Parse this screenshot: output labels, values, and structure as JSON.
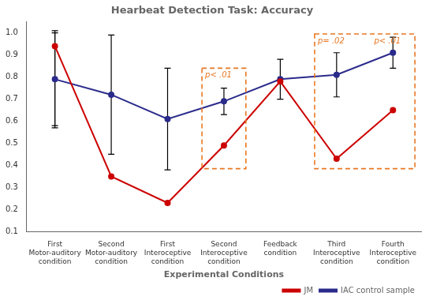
{
  "chart_data": {
    "type": "line",
    "title": "Hearbeat Detection Task: Accuracy",
    "xlabel": "Experimental Conditions",
    "categories": [
      "First\nMotor-auditory\ncondition",
      "Second\nMotor-auditory\ncondition",
      "First\nInteroceptive\ncondition",
      "Second\nInteroceptive\ncondition",
      "Feedback\ncondition",
      "Third\nInteroceptive\ncondition",
      "Fourth\nInteroceptive\ncondition"
    ],
    "series": [
      {
        "name": "JM",
        "color": "#cc0000",
        "marker": "circle",
        "values": [
          0.94,
          0.35,
          0.23,
          0.49,
          0.78,
          0.43,
          0.65
        ],
        "errors_upper": [
          0.07,
          0.0,
          0.0,
          0.0,
          0.0,
          0.0,
          0.0
        ],
        "errors_lower": [
          0.37,
          0.0,
          0.0,
          0.0,
          0.0,
          0.0,
          0.0
        ]
      },
      {
        "name": "IAC control sample",
        "color": "#2b2b8c",
        "marker": "circle",
        "values": [
          0.79,
          0.72,
          0.61,
          0.69,
          0.79,
          0.81,
          0.91
        ],
        "errors_upper": [
          0.21,
          0.27,
          0.23,
          0.06,
          0.09,
          0.1,
          0.07
        ],
        "errors_lower": [
          0.21,
          0.27,
          0.23,
          0.06,
          0.09,
          0.1,
          0.07
        ]
      }
    ],
    "ylim": [
      0.1,
      1.05
    ],
    "yticks": [
      0.1,
      0.2,
      0.3,
      0.4,
      0.5,
      0.6,
      0.7,
      0.8,
      0.9,
      {
        "value": 1,
        "label": "1.0"
      }
    ],
    "grid": false,
    "legend": "lower right",
    "annotations": [
      {
        "type": "box",
        "color": "#e87722",
        "line_style": "dashed",
        "from": "Second\nInteroceptive\ncondition",
        "to": "Second\nInteroceptive\ncondition",
        "yrange": [
          0.385,
          0.84
        ],
        "labels": [
          "p< .01"
        ]
      },
      {
        "type": "box",
        "color": "#e87722",
        "line_style": "dashed",
        "from": "Third\nInteroceptive\ncondition",
        "to": "Fourth\nInteroceptive\ncondition",
        "yrange": [
          0.385,
          0.995
        ],
        "labels": [
          "p= .02",
          "p< .01"
        ]
      }
    ]
  }
}
